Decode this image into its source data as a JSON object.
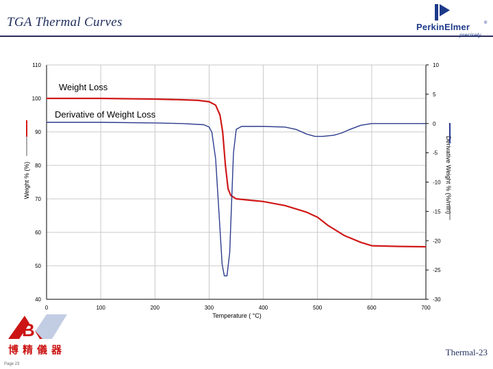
{
  "slide": {
    "title": "TGA Thermal Curves",
    "footer": "Thermal-23",
    "page": "Page 23"
  },
  "logo": {
    "name": "PerkinElmer",
    "reg": "®",
    "tagline": "precisely"
  },
  "brand": {
    "name": "博精儀器"
  },
  "colors": {
    "title": "#1f2d5c",
    "weight": "#d01818",
    "derivative": "#2b3a8c",
    "axis": "#000000",
    "grid": "#c8c8c8"
  },
  "chart_data": {
    "type": "line",
    "xlabel": "Temperature ( °C)",
    "ylabel_left": "Weight % (%)",
    "ylabel_right": "Derivative Weight % (%/min)",
    "xlim": [
      0,
      700
    ],
    "ylim_left": [
      40,
      110
    ],
    "ylim_right": [
      -30,
      10
    ],
    "x_ticks": [
      0,
      100,
      200,
      300,
      400,
      500,
      600,
      700
    ],
    "y_ticks_left": [
      40,
      50,
      60,
      70,
      80,
      90,
      100,
      110
    ],
    "y_ticks_right": [
      -30,
      -25,
      -20,
      -15,
      -10,
      -5,
      0,
      5,
      10
    ],
    "grid": true,
    "series": [
      {
        "name": "Weight Loss",
        "axis": "left",
        "color": "#d01818",
        "points": [
          [
            0,
            100
          ],
          [
            50,
            100
          ],
          [
            100,
            100
          ],
          [
            150,
            99.9
          ],
          [
            200,
            99.8
          ],
          [
            250,
            99.6
          ],
          [
            280,
            99.4
          ],
          [
            300,
            99.0
          ],
          [
            312,
            98.0
          ],
          [
            320,
            95.0
          ],
          [
            325,
            90.0
          ],
          [
            330,
            80.0
          ],
          [
            335,
            73.0
          ],
          [
            340,
            71.0
          ],
          [
            350,
            70.0
          ],
          [
            380,
            69.5
          ],
          [
            400,
            69.2
          ],
          [
            440,
            68.0
          ],
          [
            480,
            66.0
          ],
          [
            500,
            64.5
          ],
          [
            520,
            62.0
          ],
          [
            550,
            59.0
          ],
          [
            580,
            57.0
          ],
          [
            600,
            56.0
          ],
          [
            650,
            55.8
          ],
          [
            700,
            55.7
          ]
        ]
      },
      {
        "name": "Derivative of Weight Loss",
        "axis": "right",
        "color": "#2b3a8c",
        "points": [
          [
            0,
            0.2
          ],
          [
            100,
            0.2
          ],
          [
            200,
            0.1
          ],
          [
            250,
            0
          ],
          [
            290,
            -0.2
          ],
          [
            300,
            -0.6
          ],
          [
            305,
            -1.5
          ],
          [
            312,
            -6
          ],
          [
            318,
            -15
          ],
          [
            324,
            -24
          ],
          [
            328,
            -26
          ],
          [
            333,
            -26
          ],
          [
            338,
            -22
          ],
          [
            342,
            -12
          ],
          [
            345,
            -5
          ],
          [
            350,
            -1
          ],
          [
            360,
            -0.5
          ],
          [
            400,
            -0.5
          ],
          [
            440,
            -0.6
          ],
          [
            460,
            -1
          ],
          [
            480,
            -1.8
          ],
          [
            495,
            -2.2
          ],
          [
            510,
            -2.2
          ],
          [
            530,
            -2.0
          ],
          [
            545,
            -1.6
          ],
          [
            560,
            -1
          ],
          [
            580,
            -0.3
          ],
          [
            600,
            0
          ],
          [
            700,
            0
          ]
        ]
      }
    ],
    "annotations": [
      "Weight Loss",
      "Derivative of Weight Loss"
    ]
  }
}
